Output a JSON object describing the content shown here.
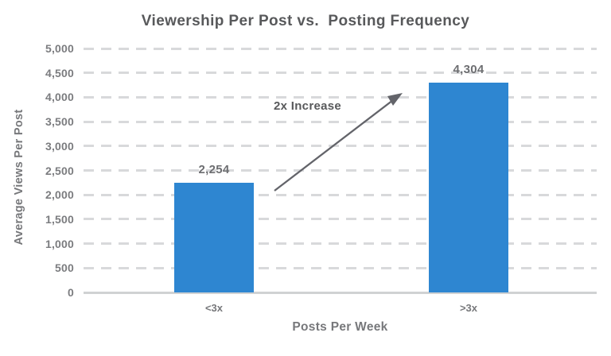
{
  "title": "Viewership Per Post vs.  Posting Frequency",
  "y_axis": {
    "title": "Average Views Per Post",
    "tick_labels": [
      "5,000",
      "4,500",
      "4,000",
      "3,500",
      "3,000",
      "2,500",
      "2,000",
      "1,500",
      "1,000",
      "500",
      "0"
    ]
  },
  "x_axis": {
    "title": "Posts Per Week",
    "category_labels": [
      "<3x",
      ">3x"
    ]
  },
  "annotation": {
    "text": "2x Increase"
  },
  "colors": {
    "bar": "#2E86D1",
    "title_text": "#58595B",
    "axis_text": "#77787B",
    "tick_text": "#7B7C7F",
    "data_label_text": "#6D6E71",
    "gridline": "#D8D9DB",
    "baseline": "#D0D2D3",
    "arrow": "#63646A"
  },
  "chart_data": {
    "type": "bar",
    "title": "Viewership Per Post vs.  Posting Frequency",
    "xlabel": "Posts Per Week",
    "ylabel": "Average Views Per Post",
    "categories": [
      "<3x",
      ">3x"
    ],
    "values": [
      2254,
      4304
    ],
    "value_labels": [
      "2,254",
      "4,304"
    ],
    "ylim": [
      0,
      5000
    ],
    "ytick_step": 500,
    "grid": "horizontal-dashed",
    "legend": "none",
    "annotations": [
      {
        "text": "2x Increase",
        "type": "arrow",
        "from_category": "<3x",
        "to_category": ">3x"
      }
    ]
  }
}
